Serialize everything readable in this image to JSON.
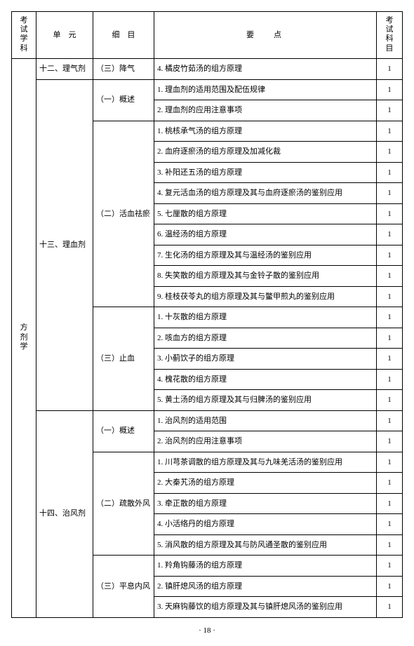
{
  "header": {
    "subject": "考试学科",
    "unit": "单　元",
    "section": "细　目",
    "point": "要点",
    "kemu": "考试科目"
  },
  "subject": "方剂学",
  "rows": [
    {
      "unit": "十二、理气剂",
      "unit_rowspan": 1,
      "section": "（三）降气",
      "section_rowspan": 1,
      "point": "4. 橘皮竹茹汤的组方原理",
      "kemu": "1"
    },
    {
      "unit": "十三、理血剂",
      "unit_rowspan": 16,
      "section": "（一）概述",
      "section_rowspan": 2,
      "point": "1. 理血剂的适用范围及配伍规律",
      "kemu": "1"
    },
    {
      "point": "2. 理血剂的应用注意事项",
      "kemu": "1"
    },
    {
      "section": "（二）活血祛瘀",
      "section_rowspan": 9,
      "point": "1. 桃核承气汤的组方原理",
      "kemu": "1"
    },
    {
      "point": "2. 血府逐瘀汤的组方原理及加减化裁",
      "kemu": "1"
    },
    {
      "point": "3. 补阳还五汤的组方原理",
      "kemu": "1"
    },
    {
      "point": "4. 复元活血汤的组方原理及其与血府逐瘀汤的鉴别应用",
      "kemu": "1"
    },
    {
      "point": "5. 七厘散的组方原理",
      "kemu": "1"
    },
    {
      "point": "6. 温经汤的组方原理",
      "kemu": "1"
    },
    {
      "point": "7. 生化汤的组方原理及其与温经汤的鉴别应用",
      "kemu": "1"
    },
    {
      "point": "8. 失笑散的组方原理及其与金铃子散的鉴别应用",
      "kemu": "1"
    },
    {
      "point": "9. 桂枝茯苓丸的组方原理及其与鳖甲煎丸的鉴别应用",
      "kemu": "1"
    },
    {
      "section": "（三）止血",
      "section_rowspan": 5,
      "point": "1. 十灰散的组方原理",
      "kemu": "1"
    },
    {
      "point": "2. 咳血方的组方原理",
      "kemu": "1"
    },
    {
      "point": "3. 小蓟饮子的组方原理",
      "kemu": "1"
    },
    {
      "point": "4. 槐花散的组方原理",
      "kemu": "1"
    },
    {
      "point": "5. 黄土汤的组方原理及其与归脾汤的鉴别应用",
      "kemu": "1"
    },
    {
      "unit": "十四、治风剂",
      "unit_rowspan": 10,
      "section": "（一）概述",
      "section_rowspan": 2,
      "point": "1. 治风剂的适用范围",
      "kemu": "1"
    },
    {
      "point": "2. 治风剂的应用注意事项",
      "kemu": "1"
    },
    {
      "section": "（二）疏散外风",
      "section_rowspan": 5,
      "point": "1. 川芎茶调散的组方原理及其与九味羌活汤的鉴别应用",
      "kemu": "1"
    },
    {
      "point": "2. 大秦艽汤的组方原理",
      "kemu": "1"
    },
    {
      "point": "3. 牵正散的组方原理",
      "kemu": "1"
    },
    {
      "point": "4. 小活络丹的组方原理",
      "kemu": "1"
    },
    {
      "point": "5. 消风散的组方原理及其与防风通圣散的鉴别应用",
      "kemu": "1"
    },
    {
      "section": "（三）平息内风",
      "section_rowspan": 3,
      "point": "1. 羚角钩藤汤的组方原理",
      "kemu": "1"
    },
    {
      "point": "2. 镇肝熄风汤的组方原理",
      "kemu": "1"
    },
    {
      "point": "3. 天麻钩藤饮的组方原理及其与镇肝熄风汤的鉴别应用",
      "kemu": "1"
    }
  ],
  "pageNumber": "· 18 ·"
}
